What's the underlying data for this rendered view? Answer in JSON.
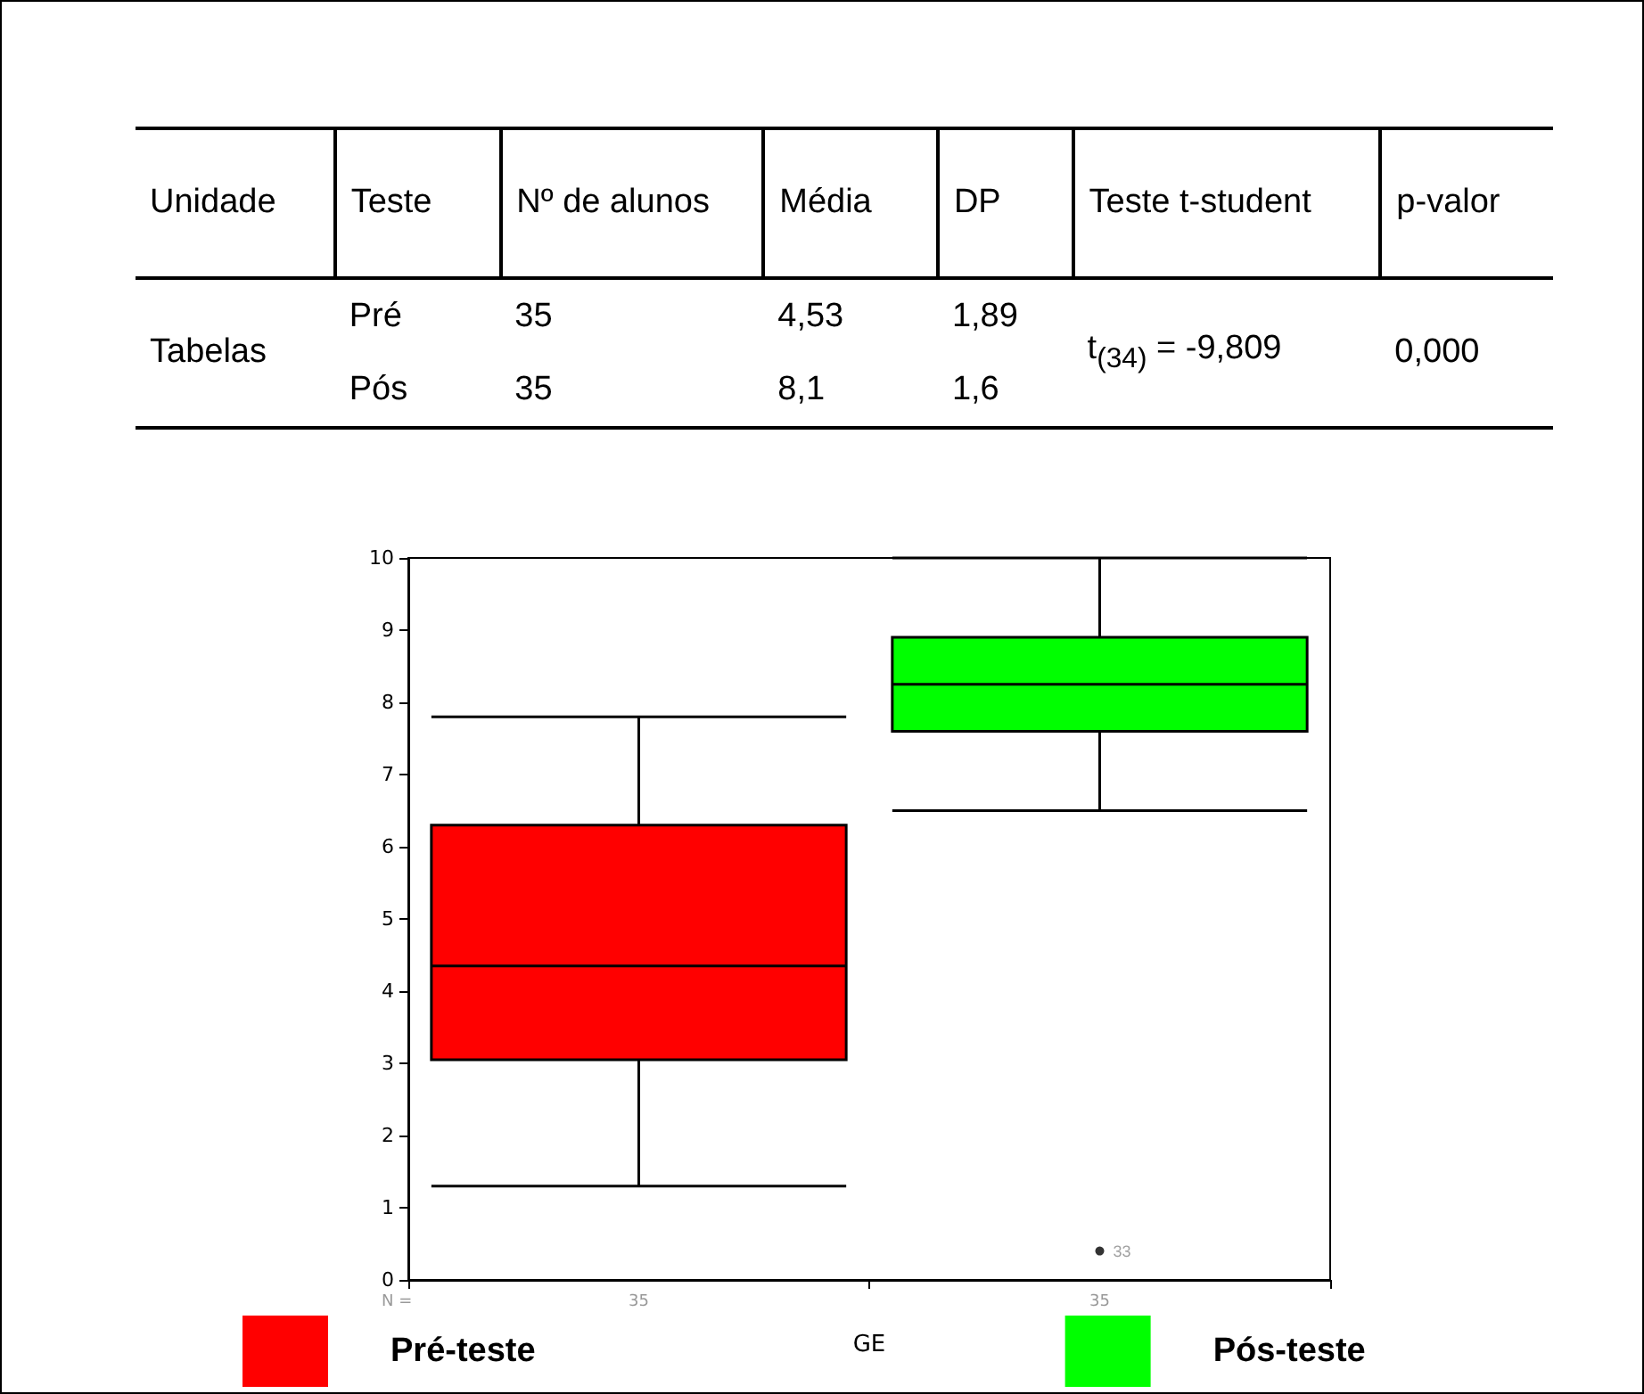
{
  "chart_data": [
    {
      "type": "other",
      "categories": [
        "Unidade",
        "Teste",
        "Nº de alunos",
        "Média",
        "DP",
        "Teste t-student",
        "p-valor"
      ],
      "cell_labels": [
        [
          "Tabelas",
          "Pré",
          "35",
          "4,53",
          "1,89",
          "t$_{(34)}$ = -9,809",
          "0,000"
        ],
        [
          null,
          "Pós",
          "35",
          "8,1",
          "1,6",
          null,
          null
        ]
      ]
    },
    {
      "type": "box",
      "categories": [
        "35",
        "35"
      ],
      "xlabel": "GE",
      "ylim": [
        0,
        10
      ],
      "yticks": [
        0,
        1,
        2,
        3,
        4,
        5,
        6,
        7,
        8,
        9,
        10
      ],
      "grid": false,
      "legend": "bottom",
      "series": [
        {
          "name": "Pré-teste",
          "color": "#ff0000",
          "boxes": [
            {
              "low": 1.3,
              "q1": 3.05,
              "median": 4.35,
              "q3": 6.3,
              "high": 7.8
            },
            null
          ]
        },
        {
          "name": "Pós-teste",
          "color": "#00ff00",
          "boxes": [
            null,
            {
              "low": 6.5,
              "q1": 7.6,
              "median": 8.25,
              "q3": 8.9,
              "high": 10,
              "outliers": [
                0.4
              ]
            }
          ]
        }
      ],
      "annotations": [
        "N =",
        "33"
      ]
    }
  ]
}
